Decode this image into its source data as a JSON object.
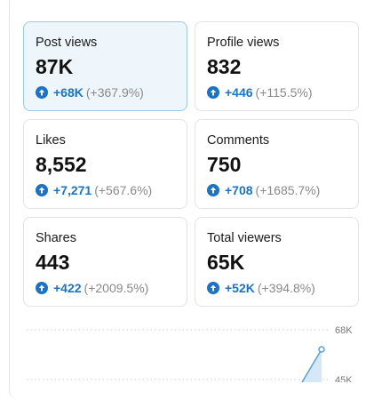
{
  "cards": [
    {
      "label": "Post views",
      "value": "87K",
      "change": "+68K",
      "percent": "(+367.9%)",
      "selected": true
    },
    {
      "label": "Profile views",
      "value": "832",
      "change": "+446",
      "percent": "(+115.5%)",
      "selected": false
    },
    {
      "label": "Likes",
      "value": "8,552",
      "change": "+7,271",
      "percent": "(+567.6%)",
      "selected": false
    },
    {
      "label": "Comments",
      "value": "750",
      "change": "+708",
      "percent": "(+1685.7%)",
      "selected": false
    },
    {
      "label": "Shares",
      "value": "443",
      "change": "+422",
      "percent": "(+2009.5%)",
      "selected": false
    },
    {
      "label": "Total viewers",
      "value": "65K",
      "change": "+52K",
      "percent": "(+394.8%)",
      "selected": false
    }
  ],
  "chart": {
    "axis_labels": [
      "68K",
      "45K"
    ]
  }
}
